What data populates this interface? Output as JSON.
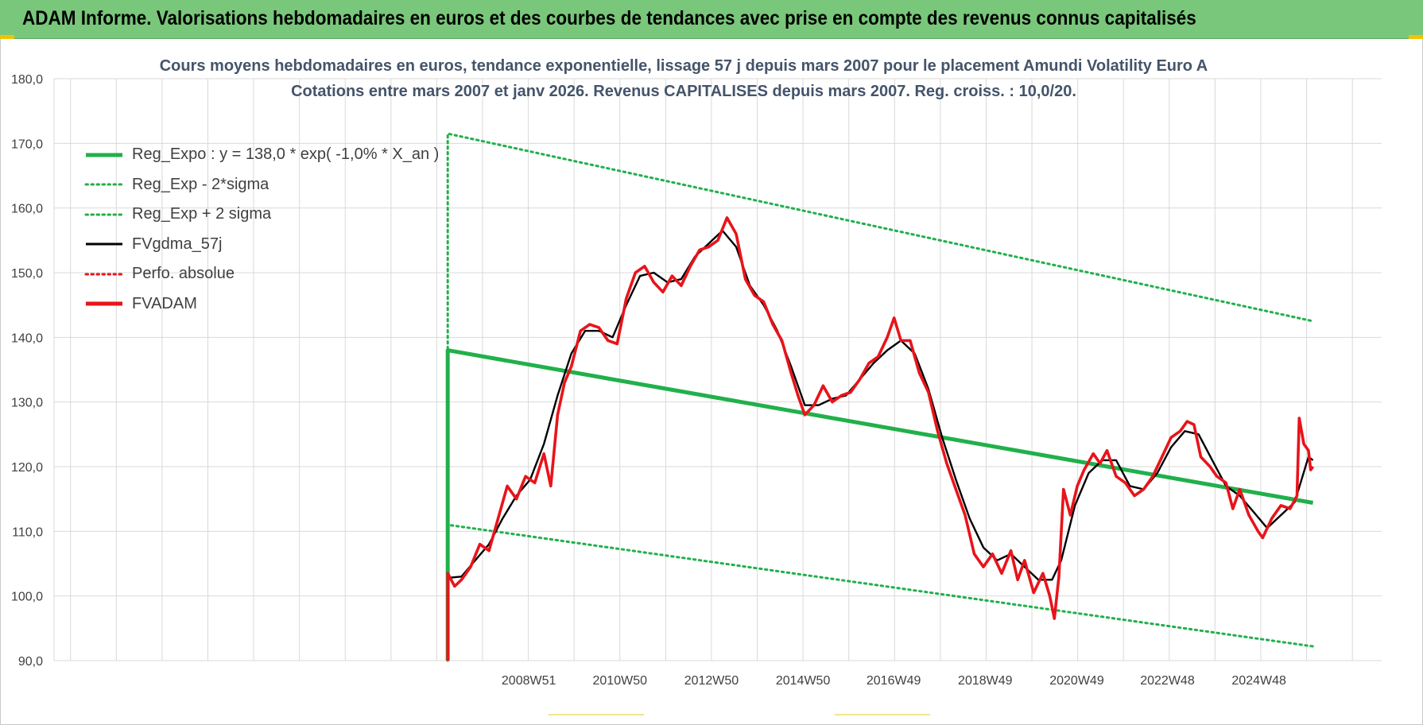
{
  "banner": {
    "title": "ADAM Informe. Valorisations hebdomadaires en euros et des courbes de tendances avec prise en compte des revenus connus capitalisés"
  },
  "colors": {
    "banner": "#79c77a",
    "regression": "#21b04b",
    "bands": "#21b04b",
    "moving_average": "#000000",
    "price": "#e8141b",
    "perf": "#e8141b",
    "grid": "#d9d9d9",
    "title_text": "#44546a"
  },
  "chart_data": {
    "type": "line",
    "title_line1": "Cours moyens hebdomadaires en euros, tendance exponentielle, lissage 57 j depuis mars 2007 pour le placement Amundi Volatility Euro A",
    "title_line2": "Cotations entre mars 2007 et janv 2026. Revenus CAPITALISES depuis mars 2007. Reg. croiss. : 10,0/20.",
    "xlabel": "",
    "ylabel": "",
    "ylim": [
      90,
      180
    ],
    "yticks": [
      "90,0",
      "100,0",
      "110,0",
      "120,0",
      "130,0",
      "140,0",
      "150,0",
      "160,0",
      "170,0",
      "180,0"
    ],
    "xlim": [
      1998.6,
      2027.6
    ],
    "xticks": [
      {
        "label": "2008W51",
        "x": 2008.97
      },
      {
        "label": "2010W50",
        "x": 2010.96
      },
      {
        "label": "2012W50",
        "x": 2012.96
      },
      {
        "label": "2014W50",
        "x": 2014.96
      },
      {
        "label": "2016W49",
        "x": 2016.94
      },
      {
        "label": "2018W49",
        "x": 2018.94
      },
      {
        "label": "2020W49",
        "x": 2020.94
      },
      {
        "label": "2022W48",
        "x": 2022.92
      },
      {
        "label": "2024W48",
        "x": 2024.92
      }
    ],
    "grid": true,
    "legend_position": "top-left",
    "series": [
      {
        "name": "Reg_Expo : y = 138,0 * exp( -1,0% *  X_an )",
        "style": "solid-thick",
        "color": "#21b04b",
        "points": [
          [
            2007.2,
            90
          ],
          [
            2007.2,
            138.0
          ],
          [
            2026.1,
            114.4
          ]
        ]
      },
      {
        "name": "Reg_Exp - 2*sigma",
        "style": "dotted",
        "color": "#21b04b",
        "points": [
          [
            2007.2,
            90
          ],
          [
            2007.2,
            111.0
          ],
          [
            2026.1,
            92.2
          ]
        ]
      },
      {
        "name": "Reg_Exp + 2 sigma",
        "style": "dotted",
        "color": "#21b04b",
        "points": [
          [
            2007.2,
            90
          ],
          [
            2007.2,
            171.5
          ],
          [
            2026.1,
            142.5
          ]
        ]
      },
      {
        "name": "FVgdma_57j",
        "style": "solid",
        "color": "#000000",
        "points": [
          [
            2007.2,
            102.8
          ],
          [
            2007.5,
            103.0
          ],
          [
            2007.8,
            105.5
          ],
          [
            2008.1,
            108.0
          ],
          [
            2008.4,
            112.0
          ],
          [
            2008.7,
            115.5
          ],
          [
            2009.0,
            118.0
          ],
          [
            2009.3,
            123.5
          ],
          [
            2009.6,
            131.0
          ],
          [
            2009.9,
            137.5
          ],
          [
            2010.2,
            141.0
          ],
          [
            2010.5,
            141.0
          ],
          [
            2010.8,
            140.0
          ],
          [
            2011.1,
            145.0
          ],
          [
            2011.4,
            149.5
          ],
          [
            2011.7,
            150.0
          ],
          [
            2012.0,
            148.5
          ],
          [
            2012.3,
            149.0
          ],
          [
            2012.6,
            152.5
          ],
          [
            2012.9,
            154.5
          ],
          [
            2013.2,
            156.5
          ],
          [
            2013.5,
            154.0
          ],
          [
            2013.8,
            148.0
          ],
          [
            2014.1,
            145.0
          ],
          [
            2014.4,
            141.0
          ],
          [
            2014.7,
            135.5
          ],
          [
            2015.0,
            129.5
          ],
          [
            2015.3,
            129.5
          ],
          [
            2015.6,
            130.5
          ],
          [
            2015.9,
            131.0
          ],
          [
            2016.2,
            133.5
          ],
          [
            2016.5,
            136.0
          ],
          [
            2016.8,
            138.0
          ],
          [
            2017.1,
            139.5
          ],
          [
            2017.4,
            137.5
          ],
          [
            2017.7,
            132.0
          ],
          [
            2018.0,
            124.5
          ],
          [
            2018.3,
            118.0
          ],
          [
            2018.6,
            112.0
          ],
          [
            2018.9,
            107.5
          ],
          [
            2019.2,
            105.5
          ],
          [
            2019.5,
            106.5
          ],
          [
            2019.8,
            104.5
          ],
          [
            2020.1,
            102.5
          ],
          [
            2020.4,
            102.5
          ],
          [
            2020.6,
            105.5
          ],
          [
            2020.9,
            114.0
          ],
          [
            2021.2,
            119.0
          ],
          [
            2021.5,
            121.0
          ],
          [
            2021.8,
            121.0
          ],
          [
            2022.1,
            117.0
          ],
          [
            2022.4,
            116.5
          ],
          [
            2022.7,
            119.0
          ],
          [
            2023.0,
            123.0
          ],
          [
            2023.3,
            125.5
          ],
          [
            2023.6,
            125.0
          ],
          [
            2023.9,
            121.0
          ],
          [
            2024.2,
            117.0
          ],
          [
            2024.5,
            115.5
          ],
          [
            2024.8,
            113.0
          ],
          [
            2025.1,
            110.5
          ],
          [
            2025.4,
            112.5
          ],
          [
            2025.7,
            114.5
          ],
          [
            2026.0,
            121.5
          ],
          [
            2026.1,
            121.0
          ]
        ]
      },
      {
        "name": "Perfo. absolue",
        "style": "dotted",
        "color": "#e8141b",
        "points": []
      },
      {
        "name": "FVADAM",
        "style": "solid-thick",
        "color": "#e8141b",
        "points": [
          [
            2007.2,
            90.0
          ],
          [
            2007.2,
            103.5
          ],
          [
            2007.35,
            101.5
          ],
          [
            2007.5,
            102.5
          ],
          [
            2007.7,
            104.5
          ],
          [
            2007.9,
            108.0
          ],
          [
            2008.1,
            107.0
          ],
          [
            2008.3,
            112.0
          ],
          [
            2008.5,
            117.0
          ],
          [
            2008.7,
            115.0
          ],
          [
            2008.9,
            118.5
          ],
          [
            2009.1,
            117.5
          ],
          [
            2009.3,
            122.0
          ],
          [
            2009.45,
            117.0
          ],
          [
            2009.6,
            128.0
          ],
          [
            2009.75,
            133.0
          ],
          [
            2009.9,
            135.5
          ],
          [
            2010.1,
            141.0
          ],
          [
            2010.3,
            142.0
          ],
          [
            2010.5,
            141.5
          ],
          [
            2010.7,
            139.5
          ],
          [
            2010.9,
            139.0
          ],
          [
            2011.1,
            146.0
          ],
          [
            2011.3,
            150.0
          ],
          [
            2011.5,
            151.0
          ],
          [
            2011.7,
            148.5
          ],
          [
            2011.9,
            147.0
          ],
          [
            2012.1,
            149.5
          ],
          [
            2012.3,
            148.0
          ],
          [
            2012.5,
            151.0
          ],
          [
            2012.7,
            153.5
          ],
          [
            2012.9,
            154.0
          ],
          [
            2013.1,
            155.0
          ],
          [
            2013.3,
            158.5
          ],
          [
            2013.5,
            156.0
          ],
          [
            2013.7,
            149.0
          ],
          [
            2013.9,
            146.5
          ],
          [
            2014.1,
            145.5
          ],
          [
            2014.3,
            142.0
          ],
          [
            2014.5,
            139.5
          ],
          [
            2014.7,
            134.5
          ],
          [
            2014.85,
            131.0
          ],
          [
            2015.0,
            128.0
          ],
          [
            2015.2,
            129.5
          ],
          [
            2015.4,
            132.5
          ],
          [
            2015.6,
            130.0
          ],
          [
            2015.8,
            131.0
          ],
          [
            2016.0,
            131.5
          ],
          [
            2016.2,
            133.5
          ],
          [
            2016.4,
            136.0
          ],
          [
            2016.6,
            137.0
          ],
          [
            2016.8,
            140.0
          ],
          [
            2016.95,
            143.0
          ],
          [
            2017.1,
            139.5
          ],
          [
            2017.3,
            139.5
          ],
          [
            2017.5,
            134.5
          ],
          [
            2017.7,
            131.5
          ],
          [
            2017.9,
            125.5
          ],
          [
            2018.1,
            120.5
          ],
          [
            2018.3,
            116.5
          ],
          [
            2018.5,
            112.5
          ],
          [
            2018.7,
            106.5
          ],
          [
            2018.9,
            104.5
          ],
          [
            2019.1,
            106.5
          ],
          [
            2019.3,
            103.5
          ],
          [
            2019.5,
            107.0
          ],
          [
            2019.65,
            102.5
          ],
          [
            2019.8,
            105.5
          ],
          [
            2020.0,
            100.5
          ],
          [
            2020.2,
            103.5
          ],
          [
            2020.35,
            100.0
          ],
          [
            2020.45,
            96.5
          ],
          [
            2020.55,
            103.0
          ],
          [
            2020.65,
            116.5
          ],
          [
            2020.8,
            112.5
          ],
          [
            2020.95,
            117.0
          ],
          [
            2021.1,
            119.5
          ],
          [
            2021.3,
            122.0
          ],
          [
            2021.45,
            120.5
          ],
          [
            2021.6,
            122.5
          ],
          [
            2021.8,
            118.5
          ],
          [
            2022.0,
            117.5
          ],
          [
            2022.2,
            115.5
          ],
          [
            2022.4,
            116.5
          ],
          [
            2022.6,
            118.5
          ],
          [
            2022.8,
            121.5
          ],
          [
            2023.0,
            124.5
          ],
          [
            2023.2,
            125.5
          ],
          [
            2023.35,
            127.0
          ],
          [
            2023.5,
            126.5
          ],
          [
            2023.65,
            121.5
          ],
          [
            2023.85,
            120.0
          ],
          [
            2024.0,
            118.5
          ],
          [
            2024.2,
            117.5
          ],
          [
            2024.35,
            113.5
          ],
          [
            2024.5,
            116.5
          ],
          [
            2024.7,
            112.5
          ],
          [
            2024.9,
            110.0
          ],
          [
            2025.0,
            109.0
          ],
          [
            2025.2,
            112.0
          ],
          [
            2025.4,
            114.0
          ],
          [
            2025.6,
            113.5
          ],
          [
            2025.75,
            115.5
          ],
          [
            2025.8,
            127.5
          ],
          [
            2025.9,
            123.5
          ],
          [
            2026.0,
            122.5
          ],
          [
            2026.05,
            119.5
          ],
          [
            2026.1,
            120.0
          ]
        ]
      }
    ]
  }
}
